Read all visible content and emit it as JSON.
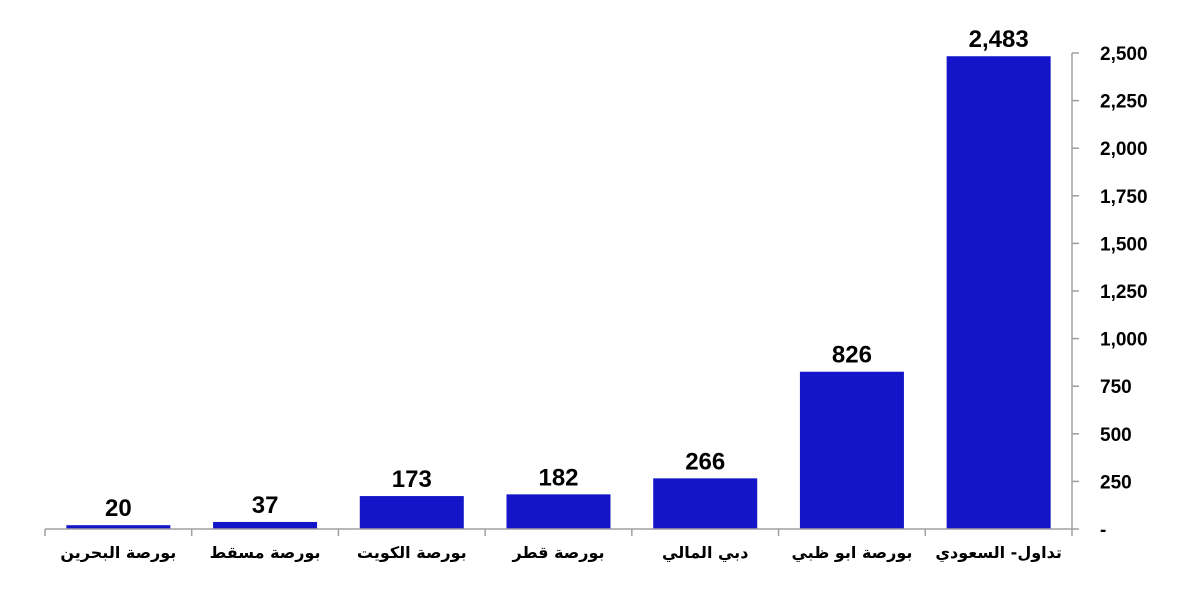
{
  "chart_data": {
    "type": "bar",
    "categories": [
      "تداول- السعودي",
      "بورصة ابو ظبي",
      "دبي المالي",
      "بورصة قطر",
      "بورصة الكويت",
      "بورصة مسقط",
      "بورصة البحرين"
    ],
    "values": [
      2483,
      826,
      266,
      182,
      173,
      37,
      20
    ],
    "value_labels": [
      "2,483",
      "826",
      "266",
      "182",
      "173",
      "37",
      "20"
    ],
    "y_ticks": [
      {
        "value": 0,
        "label": "-"
      },
      {
        "value": 250,
        "label": "250"
      },
      {
        "value": 500,
        "label": "500"
      },
      {
        "value": 750,
        "label": "750"
      },
      {
        "value": 1000,
        "label": "1,000"
      },
      {
        "value": 1250,
        "label": "1,250"
      },
      {
        "value": 1500,
        "label": "1,500"
      },
      {
        "value": 1750,
        "label": "1,750"
      },
      {
        "value": 2000,
        "label": "2,000"
      },
      {
        "value": 2250,
        "label": "2,250"
      },
      {
        "value": 2500,
        "label": "2,500"
      }
    ],
    "ylim": [
      0,
      2500
    ],
    "yaxis_position": "right",
    "grid": false,
    "bar_color": "#1414C8",
    "axis_color": "#A0A0A0"
  }
}
